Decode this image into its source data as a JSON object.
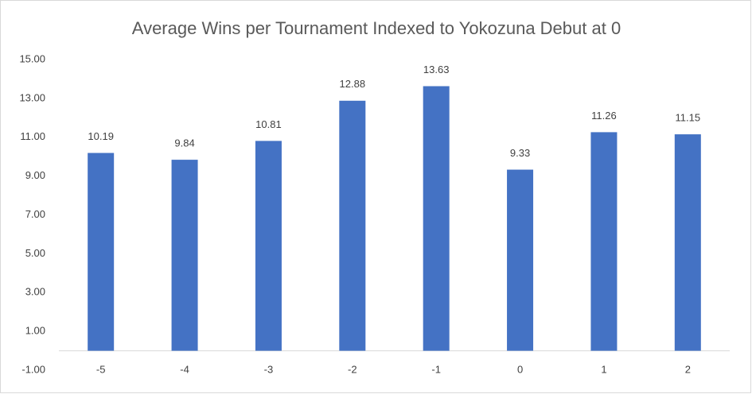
{
  "chart_data": {
    "type": "bar",
    "title": "Average Wins per Tournament Indexed to Yokozuna Debut at 0",
    "categories": [
      "-5",
      "-4",
      "-3",
      "-2",
      "-1",
      "0",
      "1",
      "2"
    ],
    "values": [
      10.19,
      9.84,
      10.81,
      12.88,
      13.63,
      9.33,
      11.26,
      11.15
    ],
    "color": "#4472c4",
    "ylim": [
      -1,
      15
    ],
    "yticks": [
      {
        "value": -1,
        "label": "-1.00"
      },
      {
        "value": 1,
        "label": "1.00"
      },
      {
        "value": 3,
        "label": "3.00"
      },
      {
        "value": 5,
        "label": "5.00"
      },
      {
        "value": 7,
        "label": "7.00"
      },
      {
        "value": 9,
        "label": "9.00"
      },
      {
        "value": 11,
        "label": "11.00"
      },
      {
        "value": 13,
        "label": "13.00"
      },
      {
        "value": 15,
        "label": "15.00"
      }
    ],
    "grid": false
  }
}
